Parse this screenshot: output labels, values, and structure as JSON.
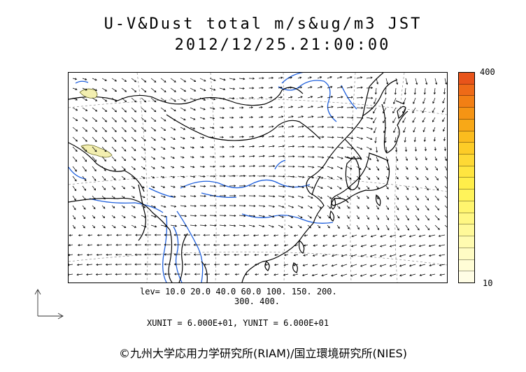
{
  "header": {
    "title": "U-V&Dust total m/s&ug/m3 JST",
    "datetime": "2012/12/25.21:00:00"
  },
  "colorbar": {
    "max_label": "400",
    "min_label": "10",
    "colors_top_to_bottom": [
      "#e8541a",
      "#ee6a17",
      "#f27f14",
      "#f59414",
      "#f8a817",
      "#fbbc1e",
      "#fdcc27",
      "#fed935",
      "#ffe540",
      "#ffee4a",
      "#fff35a",
      "#fff56e",
      "#fff783",
      "#fff999",
      "#fffbb0",
      "#fffcc4",
      "#fffdd6",
      "#fffde5"
    ]
  },
  "levels": {
    "line1": "lev= 10.0 20.0 40.0 60.0 100. 150. 200.",
    "line2": "300. 400."
  },
  "units_line": "XUNIT = 6.000E+01, YUNIT = 6.000E+01",
  "credit": "©九州大学応用力学研究所(RIAM)/国立環境研究所(NIES)",
  "map": {
    "coast_color": "#000000",
    "river_color": "#1e5fdc",
    "dust_fill": "#f3efb0",
    "dust_outline": "#6b6b2a",
    "vector_color": "#000000",
    "graticule_color": "#777777"
  }
}
